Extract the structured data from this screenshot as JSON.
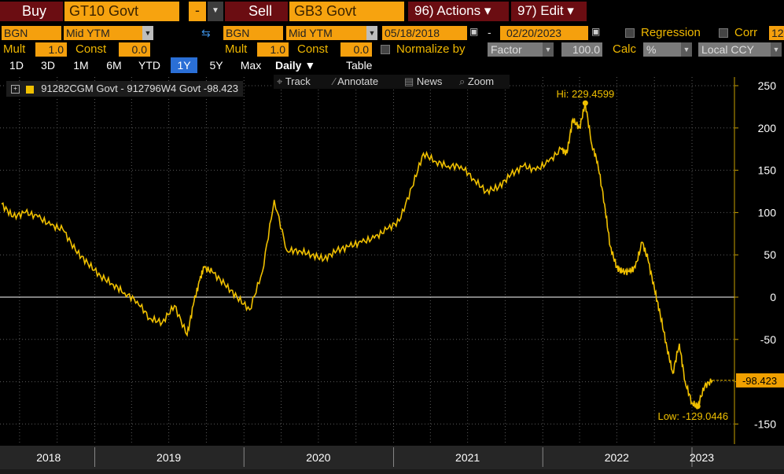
{
  "header": {
    "buy_label": "Buy",
    "buy_security": "GT10 Govt",
    "minus_label": "-",
    "sell_label": "Sell",
    "sell_security": "GB3 Govt",
    "actions_label": "96) Actions ▾",
    "edit_label": "97) Edit ▾"
  },
  "params": {
    "left_source": "BGN",
    "left_field": "Mid YTM",
    "right_source": "BGN",
    "right_field": "Mid YTM",
    "start_date": "05/18/2018",
    "dash": "-",
    "end_date": "02/20/2023",
    "regression_label": "Regression",
    "corr_label": "Corr",
    "corr_value": "12"
  },
  "mult_row": {
    "mult_label": "Mult",
    "mult_left": "1.0",
    "const_label": "Const",
    "const_left": "0.0",
    "mult_right": "1.0",
    "const_right": "0.0",
    "normalize_label": "Normalize by",
    "factor_label": "Factor",
    "factor_value": "100.0",
    "calc_label": "Calc",
    "calc_value": "%",
    "ccy_value": "Local CCY"
  },
  "periods": [
    "1D",
    "3D",
    "1M",
    "6M",
    "YTD",
    "1Y",
    "5Y",
    "Max"
  ],
  "selected_period": "1Y",
  "freq_label": "Daily ▼",
  "table_label": "Table",
  "tools": {
    "track": "Track",
    "annotate": "Annotate",
    "news": "News",
    "zoom": "Zoom"
  },
  "legend_text": "91282CGM Govt - 912796W4 Govt -98.423",
  "colors": {
    "series": "#f0c000",
    "zero_line": "#ffffff",
    "last_label_bg": "#f0a000"
  },
  "chart_data": {
    "type": "line",
    "title": "",
    "ylim": [
      -150,
      250
    ],
    "yticks": [
      250,
      200,
      150,
      100,
      50,
      0,
      -50,
      -100,
      -150
    ],
    "xtick_labels": [
      "2018",
      "2019",
      "2020",
      "2021",
      "2022",
      "2023"
    ],
    "grid": true,
    "series": [
      {
        "name": "91282CGM Govt - 912796W4 Govt",
        "x": [
          "2018-05-18",
          "2018-06-15",
          "2018-07-15",
          "2018-08-15",
          "2018-09-15",
          "2018-10-15",
          "2018-11-15",
          "2018-12-15",
          "2019-01-15",
          "2019-02-15",
          "2019-03-15",
          "2019-04-15",
          "2019-05-15",
          "2019-06-15",
          "2019-07-15",
          "2019-08-15",
          "2019-09-01",
          "2019-09-15",
          "2019-09-25",
          "2019-10-15",
          "2019-11-15",
          "2019-12-15",
          "2020-01-15",
          "2020-02-15",
          "2020-03-15",
          "2020-04-15",
          "2020-05-15",
          "2020-06-15",
          "2020-07-15",
          "2020-08-15",
          "2020-09-15",
          "2020-10-15",
          "2020-11-15",
          "2020-12-15",
          "2021-01-15",
          "2021-02-15",
          "2021-03-15",
          "2021-04-15",
          "2021-05-15",
          "2021-06-15",
          "2021-07-15",
          "2021-08-15",
          "2021-09-15",
          "2021-10-15",
          "2021-11-15",
          "2021-12-15",
          "2022-01-15",
          "2022-02-15",
          "2022-03-01",
          "2022-03-15",
          "2022-04-01",
          "2022-04-15",
          "2022-05-01",
          "2022-05-15",
          "2022-06-01",
          "2022-06-15",
          "2022-07-01",
          "2022-07-15",
          "2022-08-01",
          "2022-08-15",
          "2022-09-01",
          "2022-09-15",
          "2022-10-01",
          "2022-10-15",
          "2022-11-01",
          "2022-11-15",
          "2022-12-01",
          "2022-12-15",
          "2023-01-01",
          "2023-01-15",
          "2023-02-01",
          "2023-02-20"
        ],
        "values": [
          110,
          95,
          100,
          95,
          85,
          80,
          55,
          40,
          25,
          15,
          5,
          -5,
          -25,
          -30,
          -10,
          -45,
          -5,
          20,
          35,
          30,
          15,
          0,
          -15,
          30,
          115,
          55,
          55,
          50,
          45,
          55,
          60,
          65,
          70,
          80,
          90,
          130,
          170,
          160,
          155,
          155,
          140,
          125,
          130,
          145,
          155,
          150,
          160,
          175,
          170,
          210,
          200,
          229.46,
          180,
          160,
          110,
          60,
          35,
          30,
          30,
          35,
          65,
          45,
          10,
          -20,
          -60,
          -90,
          -55,
          -100,
          -125,
          -129.04,
          -105,
          -98.42
        ]
      }
    ],
    "annotations": {
      "hi_label": "Hi: 229.4599",
      "low_label": "Low: -129.0446",
      "last_label": "-98.423"
    }
  }
}
